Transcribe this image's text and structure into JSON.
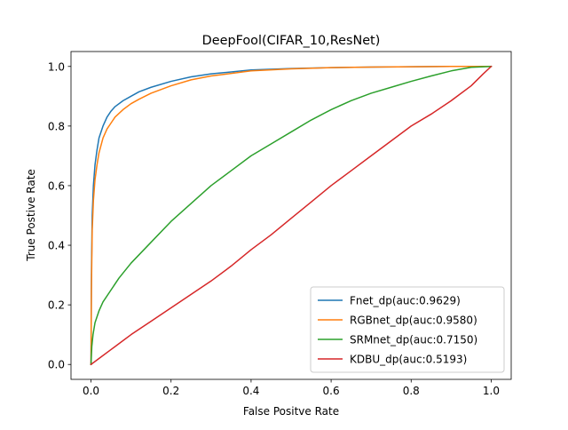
{
  "chart_data": {
    "type": "line",
    "title": "DeepFool(CIFAR_10,ResNet)",
    "xlabel": "False Positve Rate",
    "ylabel": "True Postive Rate",
    "xlim": [
      -0.05,
      1.05
    ],
    "ylim": [
      -0.05,
      1.05
    ],
    "xticks": [
      0.0,
      0.2,
      0.4,
      0.6,
      0.8,
      1.0
    ],
    "yticks": [
      0.0,
      0.2,
      0.4,
      0.6,
      0.8,
      1.0
    ],
    "xtick_labels": [
      "0.0",
      "0.2",
      "0.4",
      "0.6",
      "0.8",
      "1.0"
    ],
    "ytick_labels": [
      "0.0",
      "0.2",
      "0.4",
      "0.6",
      "0.8",
      "1.0"
    ],
    "grid": false,
    "legend_position": "lower-right",
    "series": [
      {
        "name": "Fnet_dp(auc:0.9629)",
        "color": "#1f77b4",
        "x": [
          0.0,
          0.001,
          0.003,
          0.006,
          0.01,
          0.015,
          0.02,
          0.03,
          0.04,
          0.05,
          0.06,
          0.08,
          0.1,
          0.12,
          0.15,
          0.2,
          0.25,
          0.3,
          0.4,
          0.5,
          0.6,
          0.7,
          0.8,
          0.9,
          1.0
        ],
        "y": [
          0.0,
          0.3,
          0.5,
          0.6,
          0.67,
          0.72,
          0.76,
          0.8,
          0.83,
          0.85,
          0.865,
          0.885,
          0.9,
          0.915,
          0.93,
          0.95,
          0.965,
          0.975,
          0.988,
          0.993,
          0.996,
          0.998,
          0.999,
          1.0,
          1.0
        ]
      },
      {
        "name": "RGBnet_dp(auc:0.9580)",
        "color": "#ff7f0e",
        "x": [
          0.0,
          0.001,
          0.003,
          0.006,
          0.01,
          0.015,
          0.02,
          0.03,
          0.04,
          0.05,
          0.06,
          0.08,
          0.1,
          0.12,
          0.15,
          0.2,
          0.25,
          0.3,
          0.4,
          0.5,
          0.6,
          0.7,
          0.8,
          0.9,
          1.0
        ],
        "y": [
          0.0,
          0.25,
          0.45,
          0.55,
          0.62,
          0.67,
          0.71,
          0.76,
          0.79,
          0.81,
          0.83,
          0.855,
          0.875,
          0.89,
          0.91,
          0.935,
          0.955,
          0.968,
          0.985,
          0.992,
          0.996,
          0.998,
          0.999,
          1.0,
          1.0
        ]
      },
      {
        "name": "SRMnet_dp(auc:0.7150)",
        "color": "#2ca02c",
        "x": [
          0.0,
          0.002,
          0.005,
          0.01,
          0.02,
          0.03,
          0.05,
          0.07,
          0.1,
          0.15,
          0.2,
          0.25,
          0.3,
          0.35,
          0.4,
          0.45,
          0.5,
          0.55,
          0.6,
          0.65,
          0.7,
          0.75,
          0.8,
          0.85,
          0.9,
          0.95,
          1.0
        ],
        "y": [
          0.0,
          0.06,
          0.1,
          0.14,
          0.18,
          0.21,
          0.25,
          0.29,
          0.34,
          0.41,
          0.48,
          0.54,
          0.6,
          0.65,
          0.7,
          0.74,
          0.78,
          0.82,
          0.855,
          0.885,
          0.91,
          0.93,
          0.95,
          0.968,
          0.985,
          0.997,
          1.0
        ]
      },
      {
        "name": "KDBU_dp(auc:0.5193)",
        "color": "#d62728",
        "x": [
          0.0,
          0.02,
          0.05,
          0.1,
          0.15,
          0.2,
          0.25,
          0.3,
          0.35,
          0.4,
          0.45,
          0.5,
          0.55,
          0.6,
          0.65,
          0.7,
          0.75,
          0.8,
          0.85,
          0.9,
          0.95,
          0.98,
          1.0
        ],
        "y": [
          0.0,
          0.02,
          0.05,
          0.1,
          0.145,
          0.19,
          0.235,
          0.28,
          0.33,
          0.385,
          0.435,
          0.49,
          0.545,
          0.6,
          0.65,
          0.7,
          0.75,
          0.8,
          0.84,
          0.885,
          0.935,
          0.975,
          1.0
        ]
      }
    ]
  }
}
